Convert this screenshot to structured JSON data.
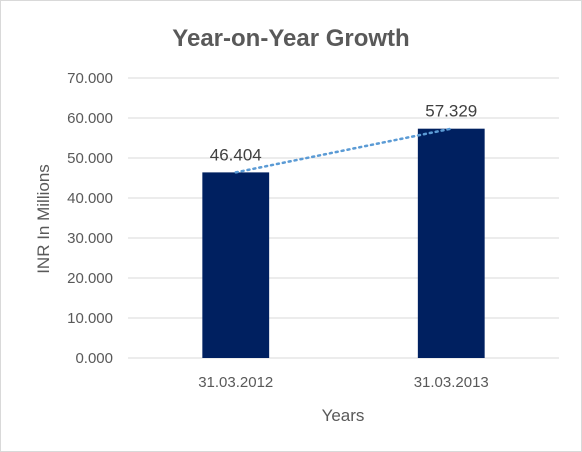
{
  "chart_data": {
    "type": "bar",
    "title": "Year-on-Year Growth",
    "xlabel": "Years",
    "ylabel": "INR In Millions",
    "categories": [
      "31.03.2012",
      "31.03.2013"
    ],
    "values": [
      46.404,
      57.329
    ],
    "data_labels": [
      "46.404",
      "57.329"
    ],
    "ylim": [
      0,
      70
    ],
    "y_ticks": [
      "0.000",
      "10.000",
      "20.000",
      "30.000",
      "40.000",
      "50.000",
      "60.000",
      "70.000"
    ],
    "bar_color": "#002060",
    "trendline": {
      "type": "linear",
      "style": "dotted",
      "color": "#5b9bd5"
    },
    "grid": true,
    "legend": "none"
  }
}
